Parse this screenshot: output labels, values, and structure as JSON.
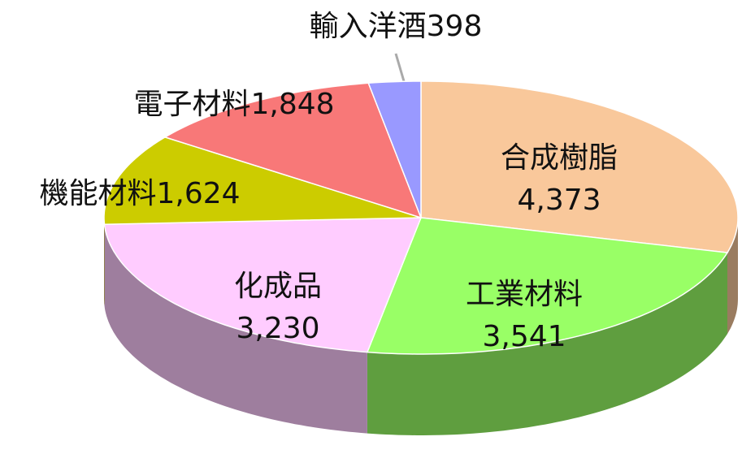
{
  "chart_data": {
    "type": "pie",
    "categories": [
      "合成樹脂",
      "工業材料",
      "化成品",
      "機能材料",
      "電子材料",
      "輸入洋酒"
    ],
    "values": [
      4373,
      3541,
      3230,
      1624,
      1848,
      398
    ],
    "value_labels": [
      "4,373",
      "3,541",
      "3,230",
      "1,624",
      "1,848",
      "398"
    ],
    "colors": [
      "#f9c89b",
      "#99ff66",
      "#ffccff",
      "#cccc00",
      "#f87878",
      "#9999ff"
    ]
  }
}
